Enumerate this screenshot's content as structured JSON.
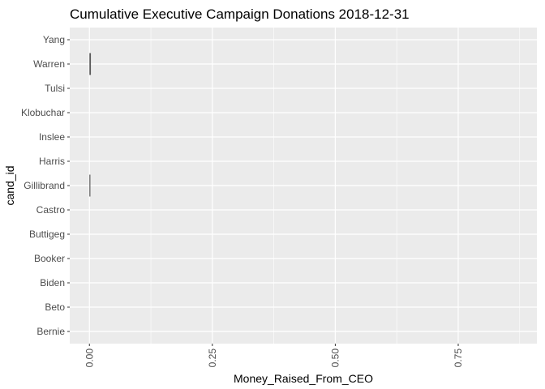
{
  "chart_data": {
    "type": "bar",
    "orientation": "horizontal",
    "title": "Cumulative Executive Campaign Donations 2018-12-31",
    "xlabel": "Money_Raised_From_CEO",
    "ylabel": "cand_id",
    "xlim": [
      -0.04,
      0.91
    ],
    "x_ticks": [
      0.0,
      0.25,
      0.5,
      0.75
    ],
    "x_tick_labels": [
      "0.00",
      "0.25",
      "0.50",
      "0.75"
    ],
    "categories": [
      "Yang",
      "Warren",
      "Tulsi",
      "Klobuchar",
      "Inslee",
      "Harris",
      "Gillibrand",
      "Castro",
      "Buttigeg",
      "Booker",
      "Biden",
      "Beto",
      "Bernie"
    ],
    "values": [
      0,
      0.003,
      0,
      0,
      0,
      0,
      0.001,
      0,
      0,
      0,
      0,
      0,
      0
    ],
    "bar_color": "#595959",
    "panel_background": "#ebebeb",
    "grid_color": "#ffffff",
    "grid": true,
    "legend": "none"
  }
}
